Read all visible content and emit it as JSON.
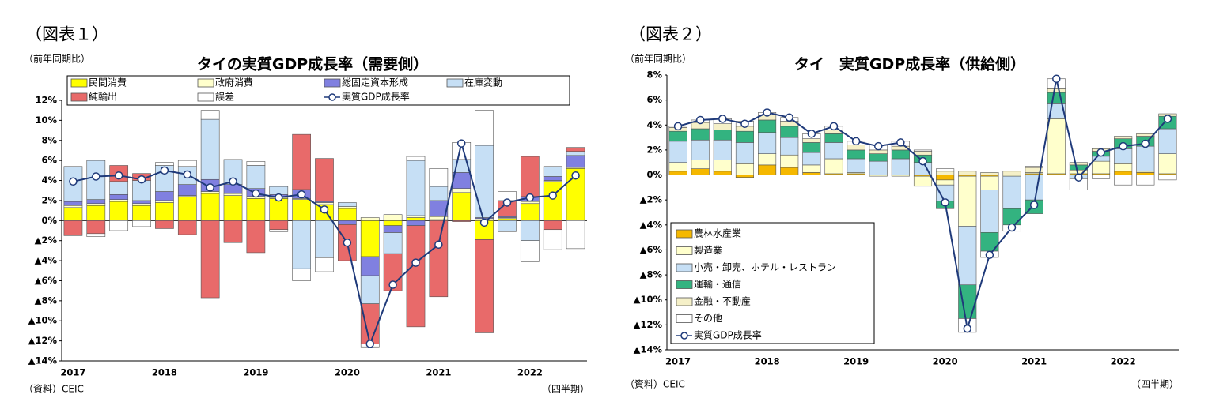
{
  "chart_data": [
    {
      "type": "bar",
      "figure_label": "（図表１）",
      "y_axis_label": "（前年同期比）",
      "title": "タイの実質GDP成長率（需要側）",
      "source": "（資料）CEIC",
      "x_axis_label": "（四半期）",
      "categories": [
        "2017",
        null,
        null,
        null,
        "2018",
        null,
        null,
        null,
        "2019",
        null,
        null,
        null,
        "2020",
        null,
        null,
        null,
        "2021",
        null,
        null,
        null,
        "2022",
        null,
        null
      ],
      "ylim": [
        -14,
        12
      ],
      "yticks": [
        {
          "value": -14,
          "label": "▲14%"
        },
        {
          "value": -12,
          "label": "▲12%"
        },
        {
          "value": -10,
          "label": "▲10%"
        },
        {
          "value": -8,
          "label": "▲8%"
        },
        {
          "value": -6,
          "label": "▲6%"
        },
        {
          "value": -4,
          "label": "▲4%"
        },
        {
          "value": -2,
          "label": "▲2%"
        },
        {
          "value": 0,
          "label": "0%"
        },
        {
          "value": 2,
          "label": "2%"
        },
        {
          "value": 4,
          "label": "4%"
        },
        {
          "value": 6,
          "label": "6%"
        },
        {
          "value": 8,
          "label": "8%"
        },
        {
          "value": 10,
          "label": "10%"
        },
        {
          "value": 12,
          "label": "12%"
        }
      ],
      "series": [
        {
          "name": "民間消費",
          "color": "#ffff00",
          "values": [
            1.3,
            1.5,
            1.9,
            1.5,
            1.8,
            2.4,
            2.7,
            2.5,
            2.2,
            2.2,
            2.1,
            1.6,
            1.2,
            -3.6,
            -0.5,
            0.3,
            0.1,
            2.8,
            -1.9,
            0.2,
            1.7,
            3.9,
            5.2
          ]
        },
        {
          "name": "政府消費",
          "color": "#ffffcc",
          "values": [
            0.2,
            0.2,
            0.2,
            0.2,
            0.2,
            0.1,
            0.2,
            0.2,
            0.2,
            0.1,
            0.1,
            0.2,
            0.2,
            0.3,
            0.6,
            0.2,
            0.3,
            0.4,
            0.2,
            0.1,
            0.2,
            0.1,
            0.1
          ]
        },
        {
          "name": "総固定資本形成",
          "color": "#8080e0",
          "values": [
            0.4,
            0.4,
            0.5,
            0.3,
            0.9,
            1.1,
            1.2,
            0.9,
            0.8,
            0.3,
            0.9,
            0.1,
            -0.4,
            -1.9,
            -0.7,
            -0.5,
            1.6,
            1.6,
            0.1,
            0.1,
            0.5,
            0.4,
            1.2
          ]
        },
        {
          "name": "在庫変動",
          "color": "#c6dff5",
          "values": [
            3.5,
            3.9,
            1.3,
            2.0,
            2.6,
            1.8,
            6.0,
            2.5,
            2.3,
            0.8,
            -4.8,
            -3.7,
            0.4,
            -2.8,
            -2.1,
            5.5,
            1.4,
            1.3,
            7.2,
            -1.1,
            -2.0,
            1.0,
            0.4
          ]
        },
        {
          "name": "純輸出",
          "color": "#e86a6a",
          "values": [
            -1.5,
            -1.3,
            1.6,
            0.7,
            -0.8,
            -1.4,
            -7.7,
            -2.2,
            -3.2,
            -0.9,
            5.5,
            4.3,
            -3.6,
            -4.0,
            -3.7,
            -10.1,
            -7.6,
            -0.1,
            -9.3,
            1.6,
            4.0,
            -0.9,
            0.4
          ]
        },
        {
          "name": "誤差",
          "color": "#ffffff",
          "values": [
            0,
            -0.3,
            -1.0,
            -0.6,
            0.3,
            0.6,
            0.9,
            0,
            0.4,
            -0.2,
            -1.2,
            -1.4,
            0,
            -0.3,
            0,
            0.4,
            1.8,
            1.7,
            3.5,
            0.9,
            -2.1,
            -2.0,
            -2.8
          ]
        }
      ],
      "line": {
        "name": "実質GDP成長率",
        "color": "#1f3a7a",
        "values": [
          3.9,
          4.4,
          4.5,
          4.1,
          5.0,
          4.6,
          3.3,
          3.9,
          2.7,
          2.3,
          2.6,
          1.1,
          -2.2,
          -12.3,
          -6.4,
          -4.2,
          -2.4,
          7.7,
          -0.2,
          1.8,
          2.3,
          2.5,
          4.5
        ]
      }
    },
    {
      "type": "bar",
      "figure_label": "（図表２）",
      "y_axis_label": "（前年同期比）",
      "title": "タイ　実質GDP成長率（供給側）",
      "source": "（資料）CEIC",
      "x_axis_label": "（四半期）",
      "categories": [
        "2017",
        null,
        null,
        null,
        "2018",
        null,
        null,
        null,
        "2019",
        null,
        null,
        null,
        "2020",
        null,
        null,
        null,
        "2021",
        null,
        null,
        null,
        "2022",
        null,
        null
      ],
      "ylim": [
        -14,
        8
      ],
      "yticks": [
        {
          "value": -14,
          "label": "▲14%"
        },
        {
          "value": -12,
          "label": "▲12%"
        },
        {
          "value": -10,
          "label": "▲10%"
        },
        {
          "value": -8,
          "label": "▲8%"
        },
        {
          "value": -6,
          "label": "▲6%"
        },
        {
          "value": -4,
          "label": "▲4%"
        },
        {
          "value": -2,
          "label": "▲2%"
        },
        {
          "value": 0,
          "label": "0%"
        },
        {
          "value": 2,
          "label": "2%"
        },
        {
          "value": 4,
          "label": "4%"
        },
        {
          "value": 6,
          "label": "6%"
        },
        {
          "value": 8,
          "label": "8%"
        }
      ],
      "series": [
        {
          "name": "農林水産業",
          "color": "#f5b800",
          "values": [
            0.3,
            0.5,
            0.3,
            -0.2,
            0.8,
            0.6,
            0.2,
            0.1,
            0.1,
            0.0,
            0.0,
            -0.1,
            -0.4,
            -0.1,
            -0.1,
            0.0,
            0.1,
            0.1,
            0.1,
            0.1,
            0.3,
            0.2,
            0.1
          ]
        },
        {
          "name": "製造業",
          "color": "#ffffcc",
          "values": [
            0.7,
            0.7,
            0.9,
            0.9,
            0.9,
            1.0,
            0.6,
            1.2,
            0.1,
            -0.1,
            -0.1,
            -0.8,
            -0.4,
            -4.0,
            -1.1,
            -0.1,
            0.1,
            4.4,
            0.3,
            1.0,
            0.6,
            0.1,
            1.6
          ]
        },
        {
          "name": "小売・卸売、ホテル・レストラン",
          "color": "#c6dff5",
          "values": [
            1.7,
            1.6,
            1.6,
            1.7,
            1.7,
            1.4,
            1.0,
            1.3,
            1.1,
            1.1,
            1.3,
            1.0,
            -1.3,
            -4.7,
            -3.4,
            -2.6,
            -2.0,
            1.2,
            -0.3,
            0.4,
            1.2,
            2.0,
            2.0
          ]
        },
        {
          "name": "運輸・通信",
          "color": "#33b380",
          "values": [
            0.8,
            0.9,
            0.8,
            0.9,
            1.0,
            0.9,
            0.8,
            0.7,
            0.7,
            0.6,
            0.7,
            0.6,
            -0.6,
            -2.7,
            -1.5,
            -1.3,
            -1.1,
            0.9,
            0.4,
            0.4,
            0.8,
            0.8,
            1.0
          ]
        },
        {
          "name": "金融・不動産",
          "color": "#f5f0c8",
          "values": [
            0.3,
            0.5,
            0.5,
            0.4,
            0.4,
            0.4,
            0.3,
            0.3,
            0.4,
            0.3,
            0.3,
            0.3,
            0.3,
            0.3,
            0.2,
            0.3,
            0.4,
            0.3,
            0.2,
            0.2,
            0.2,
            0.2,
            0.2
          ]
        },
        {
          "name": "その他",
          "color": "#ffffff",
          "values": [
            0.1,
            0.2,
            0.4,
            0.4,
            0.2,
            0.3,
            0.4,
            0.3,
            0.3,
            0.4,
            0.4,
            0.1,
            0.2,
            -1.1,
            -0.5,
            -0.5,
            0.1,
            0.8,
            -0.9,
            -0.3,
            -0.8,
            -0.8,
            -0.4
          ]
        }
      ],
      "line": {
        "name": "実質GDP成長率",
        "color": "#1f3a7a",
        "values": [
          3.9,
          4.4,
          4.5,
          4.1,
          5.0,
          4.6,
          3.3,
          3.9,
          2.7,
          2.3,
          2.6,
          1.1,
          -2.2,
          -12.3,
          -6.4,
          -4.2,
          -2.4,
          7.7,
          -0.2,
          1.8,
          2.3,
          2.5,
          4.5
        ]
      }
    }
  ]
}
